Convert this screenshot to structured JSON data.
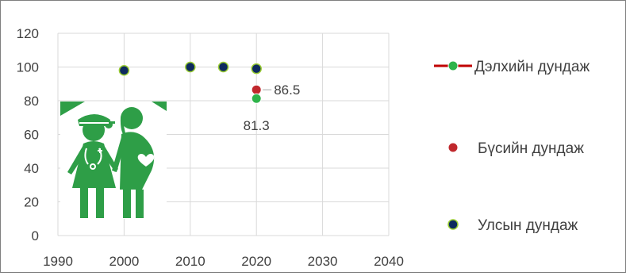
{
  "chart_data": {
    "type": "scatter",
    "x_ticks": [
      "1990",
      "2000",
      "2010",
      "2020",
      "2030",
      "2040"
    ],
    "y_ticks": [
      "0",
      "20",
      "40",
      "60",
      "80",
      "100",
      "120"
    ],
    "xlim": [
      1990,
      2040
    ],
    "ylim": [
      0,
      120
    ],
    "grid": true,
    "legend_position": "right",
    "series": [
      {
        "name": "Дэлхийн дундаж",
        "color": "#2eb34a",
        "line_color": "#c00000",
        "marker": "circle",
        "points": [
          {
            "x": 2020,
            "y": 81.3,
            "label": "81.3"
          }
        ]
      },
      {
        "name": "Бүсийн дундаж",
        "color": "#c0282d",
        "marker": "circle",
        "points": [
          {
            "x": 2020,
            "y": 86.5,
            "label": "86.5"
          }
        ]
      },
      {
        "name": "Улсын дундаж",
        "color": "#0d2a5e",
        "edge_color": "#9acd32",
        "marker": "circle",
        "points": [
          {
            "x": 2000,
            "y": 98
          },
          {
            "x": 2010,
            "y": 100
          },
          {
            "x": 2015,
            "y": 100
          },
          {
            "x": 2020,
            "y": 99
          }
        ]
      }
    ]
  },
  "illustration": {
    "icon": "health-worker-and-pregnant-woman-icon",
    "color": "#2e9e47"
  }
}
